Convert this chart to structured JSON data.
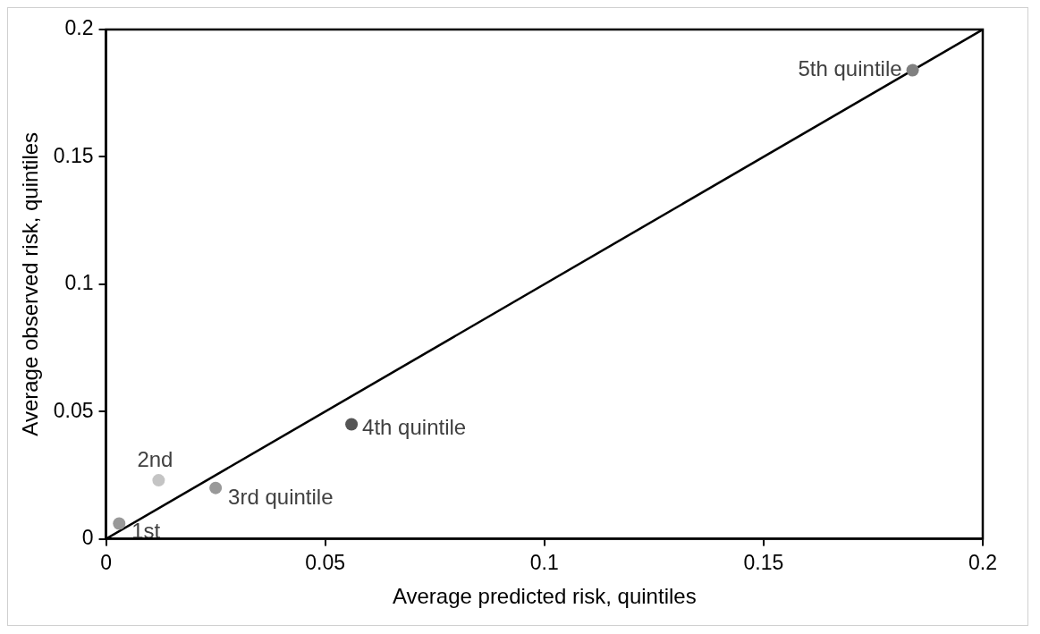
{
  "chart_data": {
    "type": "scatter",
    "xlabel": "Average predicted risk, quintiles",
    "ylabel": "Average observed risk, quintiles",
    "xlim": [
      0,
      0.2
    ],
    "xticks": [
      0,
      0.05,
      0.1,
      0.15,
      0.2
    ],
    "ylim": [
      0,
      0.2
    ],
    "yticks": [
      0,
      0.05,
      0.1,
      0.15,
      0.2
    ],
    "grid": false,
    "legend": false,
    "marker": "circle",
    "series": [
      {
        "name": "1st",
        "color": "#999999",
        "x": [
          0.003
        ],
        "values": [
          0.006
        ]
      },
      {
        "name": "2nd",
        "color": "#c4c4c4",
        "x": [
          0.012
        ],
        "values": [
          0.023
        ]
      },
      {
        "name": "3rd quintile",
        "color": "#999999",
        "x": [
          0.025
        ],
        "values": [
          0.02
        ]
      },
      {
        "name": "4th quintile",
        "color": "#555555",
        "x": [
          0.056
        ],
        "values": [
          0.045
        ]
      },
      {
        "name": "5th quintile",
        "color": "#808080",
        "x": [
          0.184
        ],
        "values": [
          0.184
        ]
      },
      {
        "type": "line",
        "color": "#000000",
        "x": [
          0,
          0.2
        ],
        "values": [
          0,
          0.2
        ],
        "marker": "none",
        "line_style": "solid"
      }
    ]
  }
}
